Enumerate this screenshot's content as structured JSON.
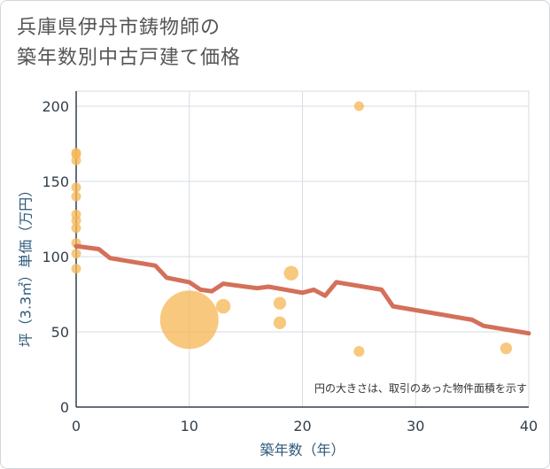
{
  "chart_data": {
    "type": "scatter",
    "title_lines": [
      "兵庫県伊丹市鋳物師の",
      "築年数別中古戸建て価格"
    ],
    "xlabel": "築年数（年）",
    "ylabel": "坪（3.3㎡）単価（万円）",
    "xlim": [
      0,
      40
    ],
    "ylim": [
      0,
      210
    ],
    "xticks": [
      0,
      10,
      20,
      30,
      40
    ],
    "yticks": [
      0,
      50,
      100,
      150,
      200
    ],
    "grid": true,
    "note": "円の大きさは、取引のあった物件面積を示す",
    "points": [
      {
        "x": 0,
        "y": 169,
        "size": 1
      },
      {
        "x": 0,
        "y": 168,
        "size": 1
      },
      {
        "x": 0,
        "y": 164,
        "size": 1
      },
      {
        "x": 0,
        "y": 146,
        "size": 1
      },
      {
        "x": 0,
        "y": 140,
        "size": 1
      },
      {
        "x": 0,
        "y": 128,
        "size": 1
      },
      {
        "x": 0,
        "y": 124,
        "size": 1
      },
      {
        "x": 0,
        "y": 119,
        "size": 1
      },
      {
        "x": 0,
        "y": 109,
        "size": 1
      },
      {
        "x": 0,
        "y": 102,
        "size": 1
      },
      {
        "x": 0,
        "y": 92,
        "size": 1
      },
      {
        "x": 10,
        "y": 58,
        "size": 6
      },
      {
        "x": 13,
        "y": 67,
        "size": 1.5
      },
      {
        "x": 18,
        "y": 69,
        "size": 1.3
      },
      {
        "x": 18,
        "y": 56,
        "size": 1.3
      },
      {
        "x": 19,
        "y": 89,
        "size": 1.5
      },
      {
        "x": 25,
        "y": 200,
        "size": 1
      },
      {
        "x": 25,
        "y": 37,
        "size": 1.1
      },
      {
        "x": 38,
        "y": 39,
        "size": 1.2
      }
    ],
    "trend_line": {
      "x": [
        0,
        2,
        3,
        7,
        8,
        10,
        11,
        12,
        13,
        16,
        17,
        20,
        21,
        22,
        23,
        27,
        28,
        35,
        36,
        40
      ],
      "y": [
        107,
        105,
        99,
        94,
        86,
        83,
        78,
        77,
        82,
        79,
        80,
        76,
        78,
        74,
        83,
        78,
        67,
        58,
        54,
        49
      ]
    },
    "colors": {
      "point": "#f5b95a",
      "line": "#d4705a",
      "grid": "#d6dde4",
      "axis": "#333f4a"
    }
  }
}
